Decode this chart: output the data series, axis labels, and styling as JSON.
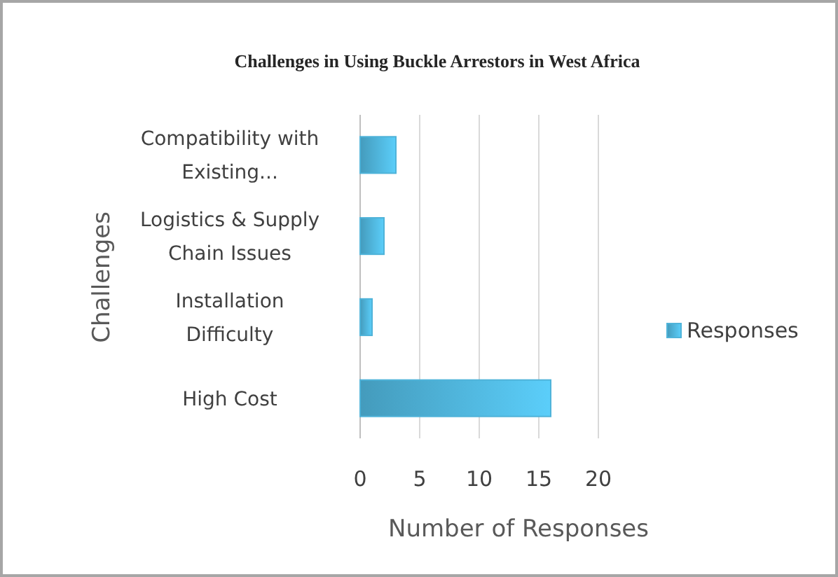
{
  "chart_data": {
    "type": "bar",
    "orientation": "horizontal",
    "title": "Challenges in Using Buckle Arrestors in West Africa",
    "xlabel": "Number of Responses",
    "ylabel": "Challenges",
    "categories": [
      "Compatibility with Existing...",
      "Logistics & Supply Chain Issues",
      "Installation Difficulty",
      "High Cost"
    ],
    "series": [
      {
        "name": "Responses",
        "color": "#4fb3d9",
        "values": [
          3,
          2,
          1,
          16
        ]
      }
    ],
    "xlim": [
      0,
      20
    ],
    "xticks": [
      0,
      5,
      10,
      15,
      20
    ],
    "grid": "x",
    "legend": "right"
  }
}
